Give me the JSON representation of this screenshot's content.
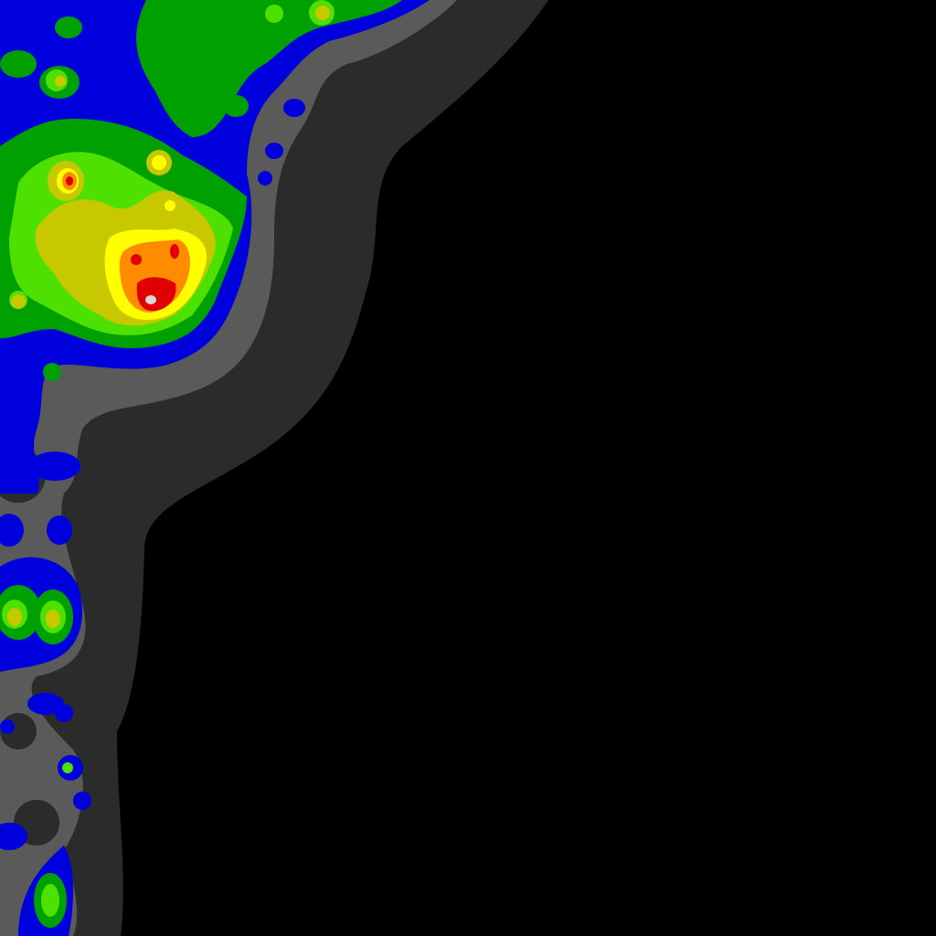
{
  "map": {
    "kind": "light-pollution-intensity-map",
    "background_color": "#000000",
    "legend_text": "",
    "intensity_levels": [
      {
        "level": 0,
        "name": "darkest",
        "color": "#000000"
      },
      {
        "level": 1,
        "name": "dark-gray",
        "color": "#2b2b2b"
      },
      {
        "level": 2,
        "name": "gray",
        "color": "#5a5a5a"
      },
      {
        "level": 3,
        "name": "blue",
        "color": "#0000dc"
      },
      {
        "level": 4,
        "name": "green",
        "color": "#00a000"
      },
      {
        "level": 5,
        "name": "light-green",
        "color": "#4ee000"
      },
      {
        "level": 6,
        "name": "olive",
        "color": "#c8c800"
      },
      {
        "level": 7,
        "name": "yellow",
        "color": "#ffff00"
      },
      {
        "level": 8,
        "name": "orange",
        "color": "#ff8c00"
      },
      {
        "level": 9,
        "name": "red",
        "color": "#e00000"
      },
      {
        "level": 10,
        "name": "white",
        "color": "#d8d8d8"
      }
    ]
  }
}
